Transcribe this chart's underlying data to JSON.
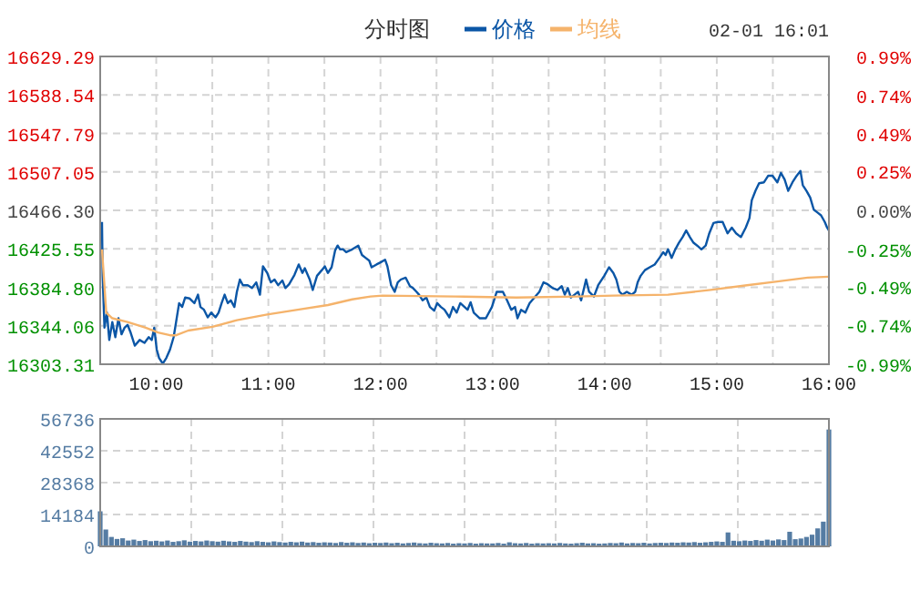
{
  "chart_data": [
    {
      "type": "line",
      "title": "分时图",
      "annotations": [
        "02-01 16:01"
      ],
      "legend": "top",
      "grid": true,
      "xlim": [
        9.5,
        16
      ],
      "xticks": [
        {
          "value": 10,
          "label": "10:00"
        },
        {
          "value": 10.5,
          "label": null
        },
        {
          "value": 11,
          "label": "11:00"
        },
        {
          "value": 11.5,
          "label": null
        },
        {
          "value": 12,
          "label": "12:00"
        },
        {
          "value": 12.5,
          "label": null
        },
        {
          "value": 13,
          "label": "13:00"
        },
        {
          "value": 13.5,
          "label": null
        },
        {
          "value": 14,
          "label": "14:00"
        },
        {
          "value": 14.5,
          "label": null
        },
        {
          "value": 15,
          "label": "15:00"
        },
        {
          "value": 15.5,
          "label": null
        },
        {
          "value": 16,
          "label": "16:00"
        }
      ],
      "ylim": [
        16303.31,
        16629.29
      ],
      "yticks": [
        16629.29,
        16588.54,
        16547.79,
        16507.05,
        {
          "value": 16466.3,
          "label": "16466.30"
        },
        16425.55,
        {
          "value": 16384.8,
          "label": "16384.80"
        },
        16344.06,
        16303.31
      ],
      "y2lim": [
        -0.99,
        0.99
      ],
      "y2ticks": [
        {
          "value": 0.99,
          "label": "0.99%"
        },
        {
          "value": 0.74,
          "label": "0.74%"
        },
        {
          "value": 0.49,
          "label": "0.49%"
        },
        {
          "value": 0.25,
          "label": "0.25%"
        },
        {
          "value": 0,
          "label": "0.00%"
        },
        {
          "value": -0.25,
          "label": "-0.25%"
        },
        {
          "value": -0.49,
          "label": "-0.49%"
        },
        {
          "value": -0.74,
          "label": "-0.74%"
        },
        {
          "value": -0.99,
          "label": "-0.99%"
        }
      ],
      "series": [
        {
          "name": "价格",
          "color": "#0b56a6",
          "x": [
            9.516,
            9.522,
            9.538,
            9.56,
            9.581,
            9.608,
            9.635,
            9.663,
            9.69,
            9.717,
            9.744,
            9.771,
            9.809,
            9.852,
            9.895,
            9.933,
            9.96,
            9.982,
            10.004,
            10.025,
            10.058,
            10.09,
            10.123,
            10.155,
            10.177,
            10.204,
            10.231,
            10.258,
            10.296,
            10.34,
            10.372,
            10.394,
            10.426,
            10.459,
            10.491,
            10.529,
            10.556,
            10.583,
            10.61,
            10.638,
            10.665,
            10.697,
            10.719,
            10.746,
            10.773,
            10.816,
            10.854,
            10.892,
            10.925,
            10.952,
            10.99,
            11.022,
            11.055,
            11.087,
            11.125,
            11.152,
            11.185,
            11.233,
            11.271,
            11.304,
            11.325,
            11.369,
            11.396,
            11.434,
            11.477,
            11.504,
            11.531,
            11.564,
            11.596,
            11.618,
            11.64,
            11.667,
            11.694,
            11.748,
            11.802,
            11.835,
            11.867,
            11.9,
            11.921,
            11.965,
            11.997,
            12.041,
            12.062,
            12.095,
            12.127,
            12.154,
            12.181,
            12.225,
            12.263,
            12.29,
            12.322,
            12.344,
            12.376,
            12.409,
            12.441,
            12.479,
            12.506,
            12.539,
            12.571,
            12.615,
            12.647,
            12.68,
            12.712,
            12.75,
            12.777,
            12.804,
            12.832,
            12.886,
            12.94,
            12.994,
            13.037,
            13.092,
            13.129,
            13.167,
            13.2,
            13.222,
            13.254,
            13.292,
            13.33,
            13.373,
            13.417,
            13.454,
            13.492,
            13.536,
            13.579,
            13.617,
            13.644,
            13.671,
            13.698,
            13.731,
            13.763,
            13.79,
            13.834,
            13.861,
            13.904,
            13.942,
            13.996,
            14.039,
            14.077,
            14.104,
            14.132,
            14.159,
            14.197,
            14.24,
            14.272,
            14.294,
            14.321,
            14.359,
            14.402,
            14.446,
            14.489,
            14.522,
            14.543,
            14.565,
            14.597,
            14.63,
            14.662,
            14.695,
            14.727,
            14.76,
            14.792,
            14.825,
            14.863,
            14.901,
            14.933,
            14.971,
            15.009,
            15.052,
            15.096,
            15.134,
            15.172,
            15.215,
            15.258,
            15.291,
            15.312,
            15.345,
            15.377,
            15.421,
            15.459,
            15.497,
            15.54,
            15.572,
            15.605,
            15.637,
            15.675,
            15.713,
            15.746,
            15.767,
            15.8,
            15.833,
            15.865,
            15.898,
            15.93,
            15.963,
            15.984,
            16.0
          ],
          "values": [
            16454,
            16397,
            16342,
            16358,
            16329,
            16348,
            16332,
            16352,
            16335,
            16342,
            16345,
            16337,
            16323,
            16329,
            16326,
            16332,
            16329,
            16342,
            16319,
            16310,
            16304,
            16310,
            16319,
            16332,
            16348,
            16368,
            16364,
            16374,
            16373,
            16368,
            16377,
            16364,
            16361,
            16353,
            16358,
            16353,
            16358,
            16368,
            16377,
            16368,
            16371,
            16364,
            16380,
            16393,
            16387,
            16387,
            16384,
            16390,
            16377,
            16407,
            16400,
            16390,
            16393,
            16387,
            16392,
            16384,
            16388,
            16398,
            16409,
            16400,
            16405,
            16393,
            16382,
            16397,
            16403,
            16407,
            16400,
            16406,
            16424,
            16429,
            16425,
            16425,
            16422,
            16425,
            16429,
            16419,
            16416,
            16413,
            16406,
            16409,
            16411,
            16414,
            16407,
            16387,
            16380,
            16390,
            16393,
            16395,
            16386,
            16384,
            16380,
            16377,
            16371,
            16374,
            16364,
            16360,
            16368,
            16364,
            16361,
            16353,
            16364,
            16358,
            16368,
            16364,
            16361,
            16369,
            16358,
            16352,
            16352,
            16364,
            16380,
            16380,
            16371,
            16361,
            16364,
            16352,
            16361,
            16358,
            16368,
            16374,
            16380,
            16390,
            16388,
            16384,
            16382,
            16386,
            16377,
            16384,
            16374,
            16377,
            16380,
            16371,
            16393,
            16380,
            16375,
            16387,
            16397,
            16406,
            16400,
            16393,
            16380,
            16377,
            16380,
            16377,
            16380,
            16390,
            16397,
            16403,
            16406,
            16409,
            16416,
            16422,
            16419,
            16425,
            16416,
            16425,
            16432,
            16438,
            16445,
            16438,
            16432,
            16429,
            16425,
            16429,
            16442,
            16453,
            16454,
            16454,
            16442,
            16448,
            16442,
            16438,
            16448,
            16458,
            16477,
            16487,
            16495,
            16496,
            16503,
            16503,
            16496,
            16506,
            16499,
            16487,
            16496,
            16503,
            16508,
            16493,
            16487,
            16480,
            16467,
            16464,
            16461,
            16454,
            16448,
            16445
          ]
        },
        {
          "name": "均线",
          "color": "#f5b36b",
          "x": [
            9.516,
            9.554,
            9.608,
            9.744,
            9.906,
            10.015,
            10.123,
            10.177,
            10.285,
            10.502,
            10.719,
            10.99,
            11.261,
            11.531,
            11.748,
            11.911,
            12.019,
            12.669,
            13.211,
            13.752,
            14.077,
            14.565,
            14.944,
            15.269,
            15.54,
            15.811,
            16.0
          ],
          "values": [
            16425,
            16358,
            16352,
            16348,
            16342,
            16337,
            16334,
            16334,
            16339,
            16343,
            16350,
            16356,
            16361,
            16366,
            16372,
            16375,
            16376,
            16375,
            16374,
            16375,
            16376,
            16377,
            16382,
            16387,
            16391,
            16395,
            16396
          ]
        }
      ]
    },
    {
      "type": "bar",
      "color": "#557ca3",
      "grid": true,
      "tick_labels": "y",
      "xlim": [
        9.5,
        16
      ],
      "xticks": [
        {
          "value": 10.3125,
          "label": null
        },
        {
          "value": 11.125,
          "label": null
        },
        {
          "value": 11.9375,
          "label": null
        },
        {
          "value": 12.75,
          "label": null
        },
        {
          "value": 13.5625,
          "label": null
        },
        {
          "value": 14.375,
          "label": null
        },
        {
          "value": 15.1875,
          "label": null
        }
      ],
      "ylim": [
        0,
        56736
      ],
      "yticks": [
        0,
        14184,
        28368,
        42552,
        56736
      ],
      "x": [
        9.5,
        9.55,
        9.6,
        9.65,
        9.7,
        9.75,
        9.8,
        9.85,
        9.9,
        9.95,
        10.0,
        10.05,
        10.1,
        10.15,
        10.2,
        10.25,
        10.3,
        10.35,
        10.4,
        10.45,
        10.5,
        10.55,
        10.6,
        10.65,
        10.7,
        10.75,
        10.8,
        10.85,
        10.9,
        10.95,
        11.0,
        11.05,
        11.1,
        11.15,
        11.2,
        11.25,
        11.3,
        11.35,
        11.4,
        11.45,
        11.5,
        11.55,
        11.6,
        11.65,
        11.7,
        11.75,
        11.8,
        11.85,
        11.9,
        11.95,
        12.0,
        12.05,
        12.1,
        12.15,
        12.2,
        12.25,
        12.3,
        12.35,
        12.4,
        12.45,
        12.5,
        12.55,
        12.6,
        12.65,
        12.7,
        12.75,
        12.8,
        12.85,
        12.9,
        12.95,
        13.0,
        13.05,
        13.1,
        13.15,
        13.2,
        13.25,
        13.3,
        13.35,
        13.4,
        13.45,
        13.5,
        13.55,
        13.6,
        13.65,
        13.7,
        13.75,
        13.8,
        13.85,
        13.9,
        13.95,
        14.0,
        14.05,
        14.1,
        14.15,
        14.2,
        14.25,
        14.3,
        14.35,
        14.4,
        14.45,
        14.5,
        14.55,
        14.6,
        14.65,
        14.7,
        14.75,
        14.8,
        14.85,
        14.9,
        14.95,
        15.0,
        15.05,
        15.1,
        15.15,
        15.2,
        15.25,
        15.3,
        15.35,
        15.4,
        15.45,
        15.5,
        15.55,
        15.6,
        15.65,
        15.7,
        15.75,
        15.8,
        15.85,
        15.9,
        15.95,
        16.0
      ],
      "values": [
        15600,
        7500,
        4200,
        3300,
        3600,
        2600,
        3000,
        2400,
        2800,
        2300,
        2500,
        2200,
        2600,
        2000,
        2300,
        2700,
        2100,
        2400,
        2200,
        2600,
        2300,
        2100,
        2500,
        2200,
        2000,
        2400,
        2100,
        1900,
        2300,
        2000,
        1800,
        2200,
        1900,
        1700,
        2000,
        1800,
        2100,
        1700,
        1900,
        1600,
        1800,
        1700,
        1500,
        1900,
        1600,
        1800,
        1500,
        1700,
        1400,
        1600,
        1500,
        1700,
        1400,
        1600,
        1300,
        1500,
        1700,
        1400,
        1300,
        1600,
        1400,
        1300,
        1500,
        1200,
        1400,
        1300,
        1500,
        1200,
        1400,
        1300,
        1300,
        1500,
        1200,
        1800,
        1400,
        1300,
        1500,
        1200,
        1400,
        1300,
        1400,
        1300,
        1500,
        1300,
        1200,
        1400,
        1600,
        1300,
        1400,
        1200,
        1300,
        1500,
        1400,
        1700,
        1300,
        1500,
        1400,
        1600,
        1300,
        1500,
        1600,
        1500,
        1700,
        1600,
        1800,
        1700,
        1900,
        1600,
        1800,
        2000,
        2200,
        2000,
        6200,
        2500,
        2300,
        2600,
        2400,
        2800,
        2500,
        3000,
        2600,
        3100,
        2800,
        6500,
        3200,
        3500,
        4200,
        5200,
        8000,
        11000,
        52000
      ]
    }
  ]
}
